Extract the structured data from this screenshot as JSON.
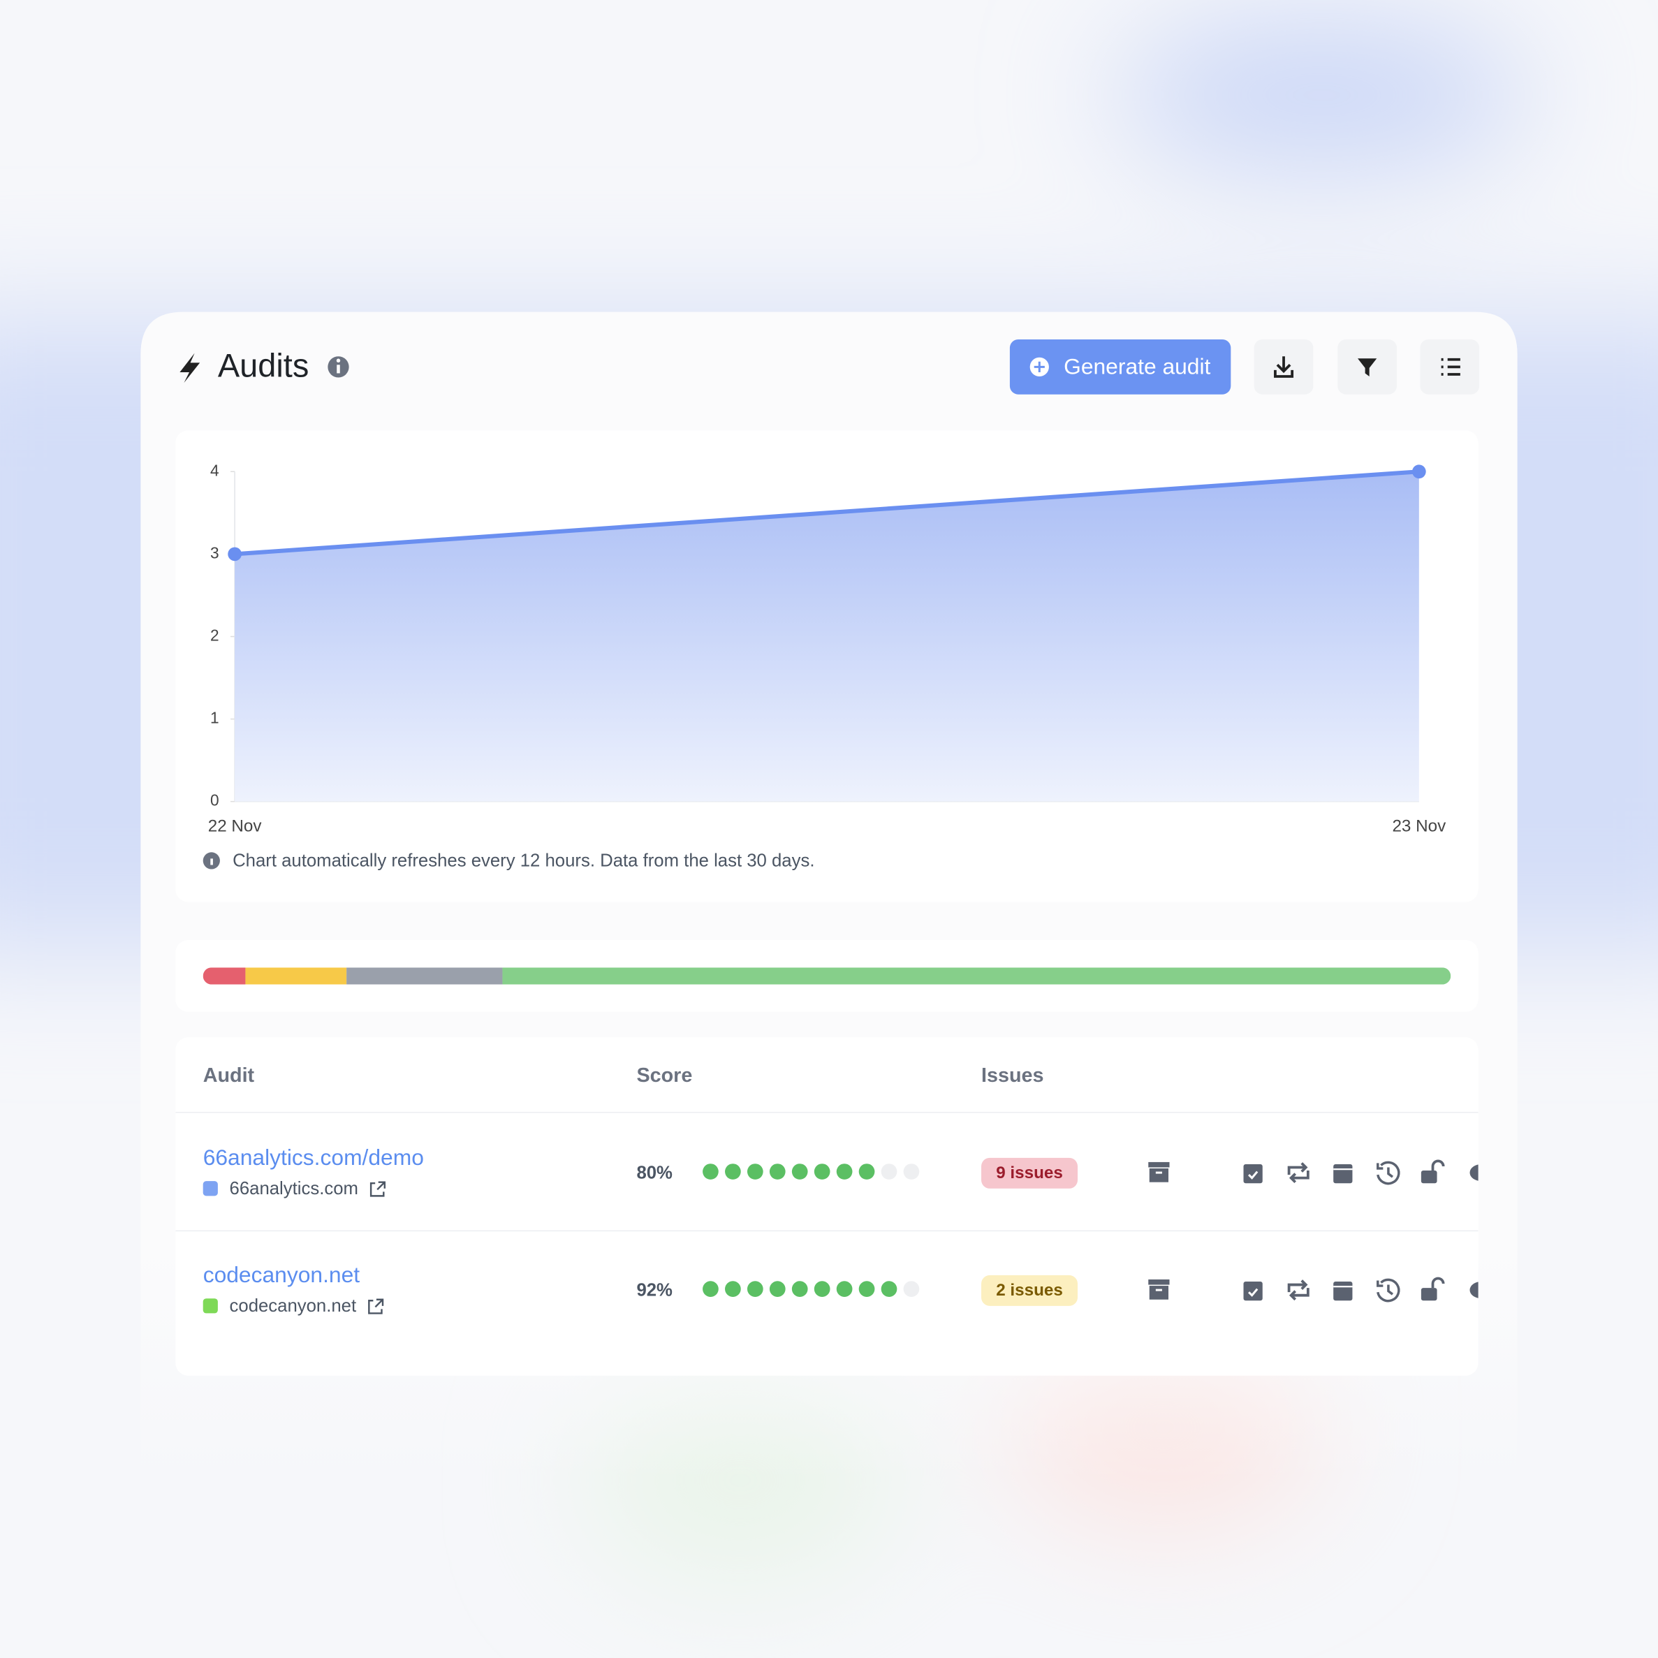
{
  "header": {
    "title": "Audits",
    "button": "Generate audit"
  },
  "chart_data": {
    "type": "area",
    "categories": [
      "22 Nov",
      "23 Nov"
    ],
    "values": [
      3,
      4
    ],
    "color": "#6a8ff0",
    "ylim": [
      0,
      4
    ],
    "yticks": [
      0,
      1,
      2,
      3,
      4
    ],
    "note": "Chart automatically refreshes every 12 hours. Data from the last 30 days."
  },
  "status_bar": {
    "segments": [
      {
        "color": "#e5606e",
        "value": 3.4
      },
      {
        "color": "#f7c948",
        "value": 8.1
      },
      {
        "color": "#9aa0ab",
        "value": 12.5
      },
      {
        "color": "#86cf8a",
        "value": 76
      }
    ]
  },
  "table": {
    "headers": [
      "Audit",
      "Score",
      "Issues"
    ],
    "rows": [
      {
        "name": "66analytics.com/demo",
        "domain": "66analytics.com",
        "score": "80%",
        "score_dots": 8,
        "issues": "9 issues",
        "issues_level": "red"
      },
      {
        "name": "codecanyon.net",
        "domain": "codecanyon.net",
        "score": "92%",
        "score_dots": 9,
        "issues": "2 issues",
        "issues_level": "yellow"
      }
    ]
  }
}
